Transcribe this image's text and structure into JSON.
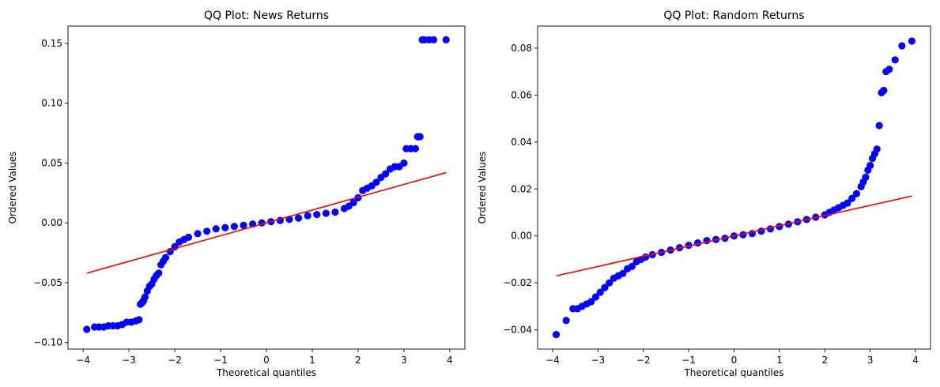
{
  "colors": {
    "points": "#0000ff",
    "fit_line": "#ff0000",
    "axes": "#000000"
  },
  "chart_data": [
    {
      "type": "scatter",
      "title": "QQ Plot: News Returns",
      "xlabel": "Theoretical quantiles",
      "ylabel": "Ordered Values",
      "xlim": [
        -4.33,
        4.33
      ],
      "ylim": [
        -0.1055,
        0.1645
      ],
      "xticks": [
        -4,
        -3,
        -2,
        -1,
        0,
        1,
        2,
        3,
        4
      ],
      "yticks": [
        -0.1,
        -0.05,
        0.0,
        0.05,
        0.1,
        0.15
      ],
      "ytick_labels": [
        "−0.10",
        "−0.05",
        "0.00",
        "0.05",
        "0.10",
        "0.15"
      ],
      "xtick_labels": [
        "−4",
        "−3",
        "−2",
        "−1",
        "0",
        "1",
        "2",
        "3",
        "4"
      ],
      "grid": false,
      "fit_line": {
        "x": [
          -3.92,
          3.92
        ],
        "y": [
          -0.042,
          0.042
        ]
      },
      "points": {
        "x": [
          -3.92,
          -3.75,
          -3.65,
          -3.55,
          -3.45,
          -3.35,
          -3.25,
          -3.15,
          -3.05,
          -2.95,
          -2.85,
          -2.78,
          -2.75,
          -2.72,
          -2.7,
          -2.68,
          -2.65,
          -2.6,
          -2.55,
          -2.5,
          -2.45,
          -2.4,
          -2.35,
          -2.3,
          -2.25,
          -2.2,
          -2.1,
          -2.0,
          -1.9,
          -1.8,
          -1.7,
          -1.5,
          -1.3,
          -1.1,
          -0.9,
          -0.7,
          -0.5,
          -0.3,
          -0.1,
          0.1,
          0.3,
          0.5,
          0.7,
          0.9,
          1.1,
          1.3,
          1.5,
          1.7,
          1.8,
          1.9,
          2.0,
          2.1,
          2.2,
          2.3,
          2.4,
          2.5,
          2.6,
          2.7,
          2.8,
          2.9,
          3.0,
          3.05,
          3.15,
          3.25,
          3.3,
          3.35,
          3.4,
          3.45,
          3.55,
          3.65,
          3.92
        ],
        "y": [
          -0.089,
          -0.087,
          -0.087,
          -0.087,
          -0.086,
          -0.086,
          -0.086,
          -0.085,
          -0.083,
          -0.083,
          -0.082,
          -0.081,
          -0.068,
          -0.067,
          -0.066,
          -0.065,
          -0.062,
          -0.057,
          -0.053,
          -0.051,
          -0.047,
          -0.044,
          -0.042,
          -0.035,
          -0.032,
          -0.029,
          -0.024,
          -0.02,
          -0.016,
          -0.014,
          -0.012,
          -0.009,
          -0.007,
          -0.005,
          -0.004,
          -0.003,
          -0.002,
          -0.001,
          0.0,
          0.001,
          0.002,
          0.003,
          0.004,
          0.006,
          0.007,
          0.008,
          0.009,
          0.012,
          0.014,
          0.017,
          0.021,
          0.027,
          0.029,
          0.031,
          0.034,
          0.038,
          0.041,
          0.045,
          0.047,
          0.047,
          0.05,
          0.062,
          0.062,
          0.062,
          0.072,
          0.072,
          0.153,
          0.153,
          0.153,
          0.153,
          0.153
        ]
      }
    },
    {
      "type": "scatter",
      "title": "QQ Plot: Random Returns",
      "xlabel": "Theoretical quantiles",
      "ylabel": "Ordered Values",
      "xlim": [
        -4.33,
        4.33
      ],
      "ylim": [
        -0.0482,
        0.0894
      ],
      "xticks": [
        -4,
        -3,
        -2,
        -1,
        0,
        1,
        2,
        3,
        4
      ],
      "yticks": [
        -0.04,
        -0.02,
        0.0,
        0.02,
        0.04,
        0.06,
        0.08
      ],
      "ytick_labels": [
        "−0.04",
        "−0.02",
        "0.00",
        "0.02",
        "0.04",
        "0.06",
        "0.08"
      ],
      "xtick_labels": [
        "−4",
        "−3",
        "−2",
        "−1",
        "0",
        "1",
        "2",
        "3",
        "4"
      ],
      "grid": false,
      "fit_line": {
        "x": [
          -3.92,
          3.92
        ],
        "y": [
          -0.017,
          0.017
        ]
      },
      "points": {
        "x": [
          -3.92,
          -3.7,
          -3.55,
          -3.45,
          -3.35,
          -3.25,
          -3.15,
          -3.05,
          -2.95,
          -2.85,
          -2.75,
          -2.65,
          -2.55,
          -2.45,
          -2.35,
          -2.25,
          -2.15,
          -2.05,
          -1.95,
          -1.8,
          -1.6,
          -1.4,
          -1.2,
          -1.0,
          -0.8,
          -0.6,
          -0.4,
          -0.2,
          0.0,
          0.2,
          0.4,
          0.6,
          0.8,
          1.0,
          1.2,
          1.4,
          1.6,
          1.8,
          2.0,
          2.1,
          2.2,
          2.3,
          2.4,
          2.5,
          2.6,
          2.7,
          2.8,
          2.85,
          2.9,
          2.95,
          3.0,
          3.05,
          3.1,
          3.15,
          3.2,
          3.25,
          3.3,
          3.35,
          3.42,
          3.55,
          3.7,
          3.92
        ],
        "y": [
          -0.042,
          -0.036,
          -0.031,
          -0.031,
          -0.03,
          -0.029,
          -0.028,
          -0.026,
          -0.024,
          -0.022,
          -0.02,
          -0.018,
          -0.017,
          -0.016,
          -0.014,
          -0.013,
          -0.011,
          -0.01,
          -0.009,
          -0.008,
          -0.007,
          -0.006,
          -0.005,
          -0.004,
          -0.003,
          -0.002,
          -0.0015,
          -0.001,
          0.0,
          0.0005,
          0.001,
          0.002,
          0.003,
          0.004,
          0.005,
          0.006,
          0.007,
          0.008,
          0.009,
          0.01,
          0.011,
          0.012,
          0.013,
          0.014,
          0.016,
          0.018,
          0.021,
          0.023,
          0.025,
          0.028,
          0.03,
          0.033,
          0.035,
          0.037,
          0.047,
          0.061,
          0.062,
          0.07,
          0.071,
          0.075,
          0.081,
          0.083
        ]
      }
    }
  ]
}
